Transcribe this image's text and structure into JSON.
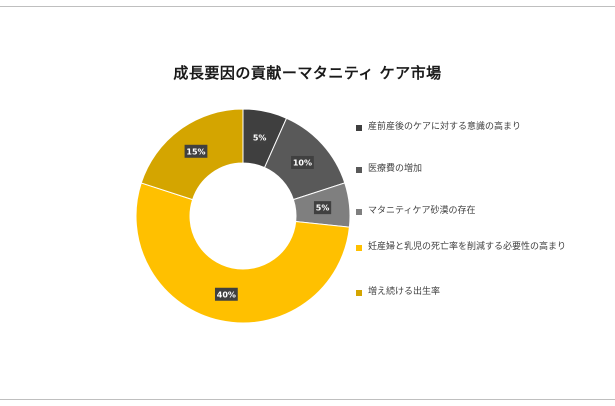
{
  "chart_data": {
    "type": "pie",
    "title": "成長要因の貢献ーマタニティ ケア市場",
    "hole": true,
    "legend_position": "right",
    "slices": [
      {
        "label": "産前産後のケアに対する意識の高まり",
        "value": 5,
        "value_label": "5%",
        "color": "#3f3f3f"
      },
      {
        "label": "医療費の増加",
        "value": 10,
        "value_label": "10%",
        "color": "#595959"
      },
      {
        "label": "マタニティケア砂漠の存在",
        "value": 5,
        "value_label": "5%",
        "color": "#7f7f7f"
      },
      {
        "label": "妊産婦と乳児の死亡率を削減する必要性の高まり",
        "value": 40,
        "value_label": "40%",
        "color": "#ffc000"
      },
      {
        "label": "増え続ける出生率",
        "value": 15,
        "value_label": "15%",
        "color": "#d4a500"
      }
    ]
  }
}
